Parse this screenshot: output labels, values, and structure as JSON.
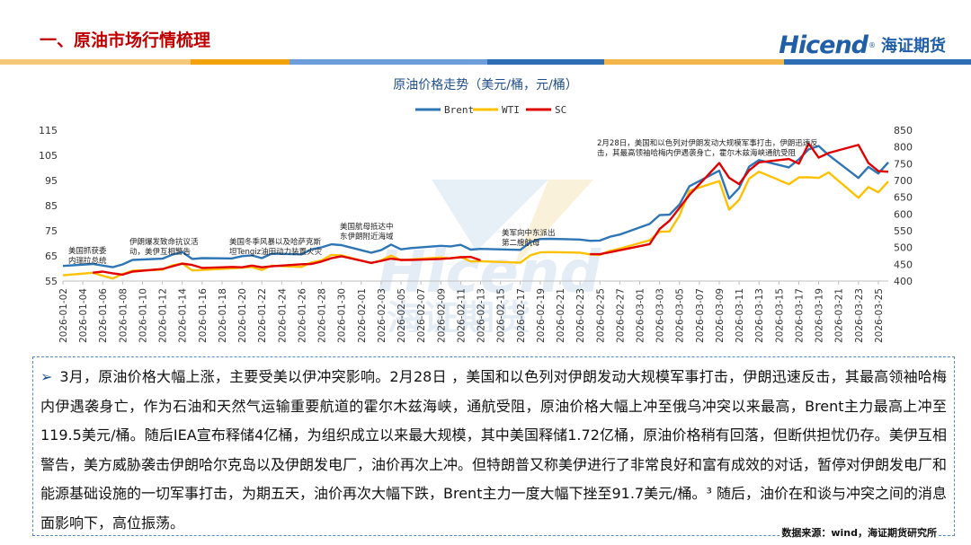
{
  "header": {
    "title": "一、原油市场行情梳理",
    "logo_brand": "Hicend",
    "logo_cn": "海证期货"
  },
  "watermark": {
    "text_en": "Hicend",
    "text_cn": "海证期货"
  },
  "colors": {
    "brent": "#2e75b6",
    "wti": "#ffc000",
    "sc": "#e00000",
    "title_red": "#c00000",
    "accent": "#1f5fa8"
  },
  "chart_data": {
    "type": "line",
    "title": "原油价格走势（美元/桶，元/桶）",
    "legend": [
      "Brent",
      "WTI",
      "SC"
    ],
    "legend_position": "top-center",
    "y_left": {
      "ticks": [
        55,
        65,
        75,
        85,
        95,
        105,
        115
      ],
      "range": [
        55,
        115
      ]
    },
    "y_right": {
      "ticks": [
        400,
        450,
        500,
        550,
        600,
        650,
        700,
        750,
        800,
        850
      ],
      "range": [
        400,
        850
      ]
    },
    "x_tick_labels": [
      "2026-01-02",
      "2026-01-04",
      "2026-01-06",
      "2026-01-08",
      "2026-01-10",
      "2026-01-12",
      "2026-01-14",
      "2026-01-16",
      "2026-01-18",
      "2026-01-20",
      "2026-01-22",
      "2026-01-24",
      "2026-01-26",
      "2026-01-28",
      "2026-01-30",
      "2026-02-01",
      "2026-02-03",
      "2026-02-05",
      "2026-02-07",
      "2026-02-09",
      "2026-02-11",
      "2026-02-13",
      "2026-02-15",
      "2026-02-17",
      "2026-02-19",
      "2026-02-21",
      "2026-02-23",
      "2026-02-25",
      "2026-02-27",
      "2026-03-01",
      "2026-03-03",
      "2026-03-05",
      "2026-03-07",
      "2026-03-09",
      "2026-03-11",
      "2026-03-13",
      "2026-03-15",
      "2026-03-17",
      "2026-03-19",
      "2026-03-21",
      "2026-03-23",
      "2026-03-25"
    ],
    "grid": false,
    "series": [
      {
        "name": "Brent",
        "axis": "left",
        "points": [
          [
            "2026-01-02",
            61.0
          ],
          [
            "2026-01-05",
            61.8
          ],
          [
            "2026-01-07",
            60.5
          ],
          [
            "2026-01-08",
            61.6
          ],
          [
            "2026-01-09",
            63.4
          ],
          [
            "2026-01-12",
            63.9
          ],
          [
            "2026-01-13",
            65.5
          ],
          [
            "2026-01-14",
            66.5
          ],
          [
            "2026-01-15",
            63.8
          ],
          [
            "2026-01-16",
            64.1
          ],
          [
            "2026-01-19",
            64.0
          ],
          [
            "2026-01-20",
            64.9
          ],
          [
            "2026-01-21",
            65.2
          ],
          [
            "2026-01-22",
            64.1
          ],
          [
            "2026-01-23",
            65.9
          ],
          [
            "2026-01-26",
            65.6
          ],
          [
            "2026-01-27",
            67.6
          ],
          [
            "2026-01-28",
            68.4
          ],
          [
            "2026-01-29",
            69.6
          ],
          [
            "2026-01-30",
            69.3
          ],
          [
            "2026-02-02",
            66.3
          ],
          [
            "2026-02-03",
            67.3
          ],
          [
            "2026-02-04",
            69.5
          ],
          [
            "2026-02-05",
            67.6
          ],
          [
            "2026-02-06",
            68.1
          ],
          [
            "2026-02-09",
            69.0
          ],
          [
            "2026-02-10",
            68.8
          ],
          [
            "2026-02-11",
            69.4
          ],
          [
            "2026-02-12",
            67.5
          ],
          [
            "2026-02-13",
            67.8
          ],
          [
            "2026-02-17",
            67.4
          ],
          [
            "2026-02-18",
            70.4
          ],
          [
            "2026-02-19",
            71.7
          ],
          [
            "2026-02-20",
            71.8
          ],
          [
            "2026-02-23",
            71.5
          ],
          [
            "2026-02-24",
            71.0
          ],
          [
            "2026-02-25",
            71.1
          ],
          [
            "2026-02-26",
            72.6
          ],
          [
            "2026-02-27",
            73.5
          ],
          [
            "2026-03-02",
            77.7
          ],
          [
            "2026-03-03",
            81.2
          ],
          [
            "2026-03-04",
            81.4
          ],
          [
            "2026-03-05",
            85.4
          ],
          [
            "2026-03-06",
            92.7
          ],
          [
            "2026-03-09",
            98.9
          ],
          [
            "2026-03-10",
            87.8
          ],
          [
            "2026-03-11",
            92.0
          ],
          [
            "2026-03-12",
            100.5
          ],
          [
            "2026-03-13",
            103.1
          ],
          [
            "2026-03-16",
            100.2
          ],
          [
            "2026-03-17",
            103.4
          ],
          [
            "2026-03-18",
            107.4
          ],
          [
            "2026-03-19",
            108.7
          ],
          [
            "2026-03-20",
            105.1
          ],
          [
            "2026-03-23",
            96.0
          ],
          [
            "2026-03-24",
            100.4
          ],
          [
            "2026-03-25",
            97.8
          ],
          [
            "2026-03-26",
            102.2
          ]
        ]
      },
      {
        "name": "WTI",
        "axis": "left",
        "points": [
          [
            "2026-01-02",
            57.3
          ],
          [
            "2026-01-05",
            58.3
          ],
          [
            "2026-01-06",
            57.1
          ],
          [
            "2026-01-07",
            56.0
          ],
          [
            "2026-01-08",
            57.8
          ],
          [
            "2026-01-09",
            59.1
          ],
          [
            "2026-01-12",
            59.5
          ],
          [
            "2026-01-13",
            61.2
          ],
          [
            "2026-01-14",
            62.0
          ],
          [
            "2026-01-15",
            59.2
          ],
          [
            "2026-01-16",
            59.4
          ],
          [
            "2026-01-20",
            60.3
          ],
          [
            "2026-01-21",
            60.6
          ],
          [
            "2026-01-22",
            59.4
          ],
          [
            "2026-01-23",
            61.1
          ],
          [
            "2026-01-26",
            60.6
          ],
          [
            "2026-01-27",
            62.4
          ],
          [
            "2026-01-28",
            63.2
          ],
          [
            "2026-01-29",
            65.4
          ],
          [
            "2026-01-30",
            65.2
          ],
          [
            "2026-02-02",
            62.1
          ],
          [
            "2026-02-03",
            63.2
          ],
          [
            "2026-02-04",
            65.1
          ],
          [
            "2026-02-05",
            63.3
          ],
          [
            "2026-02-06",
            63.6
          ],
          [
            "2026-02-09",
            64.4
          ],
          [
            "2026-02-10",
            64.0
          ],
          [
            "2026-02-11",
            64.6
          ],
          [
            "2026-02-12",
            62.8
          ],
          [
            "2026-02-13",
            62.9
          ],
          [
            "2026-02-17",
            62.3
          ],
          [
            "2026-02-18",
            65.2
          ],
          [
            "2026-02-19",
            66.4
          ],
          [
            "2026-02-20",
            66.5
          ],
          [
            "2026-02-23",
            66.3
          ],
          [
            "2026-02-24",
            65.6
          ],
          [
            "2026-02-25",
            65.4
          ],
          [
            "2026-02-26",
            67.0
          ],
          [
            "2026-02-27",
            67.9
          ],
          [
            "2026-03-02",
            71.2
          ],
          [
            "2026-03-03",
            74.6
          ],
          [
            "2026-03-04",
            74.7
          ],
          [
            "2026-03-05",
            81.0
          ],
          [
            "2026-03-06",
            90.9
          ],
          [
            "2026-03-09",
            94.8
          ],
          [
            "2026-03-10",
            83.4
          ],
          [
            "2026-03-11",
            87.3
          ],
          [
            "2026-03-12",
            95.7
          ],
          [
            "2026-03-13",
            98.5
          ],
          [
            "2026-03-16",
            93.5
          ],
          [
            "2026-03-17",
            96.2
          ],
          [
            "2026-03-18",
            96.3
          ],
          [
            "2026-03-19",
            96.0
          ],
          [
            "2026-03-20",
            98.2
          ],
          [
            "2026-03-23",
            88.1
          ],
          [
            "2026-03-24",
            92.4
          ],
          [
            "2026-03-25",
            90.3
          ],
          [
            "2026-03-26",
            94.6
          ]
        ]
      },
      {
        "name": "SC",
        "axis": "right",
        "points": [
          [
            "2026-01-05",
            425
          ],
          [
            "2026-01-06",
            428
          ],
          [
            "2026-01-07",
            423
          ],
          [
            "2026-01-08",
            419
          ],
          [
            "2026-01-09",
            428
          ],
          [
            "2026-01-12",
            436
          ],
          [
            "2026-01-13",
            444
          ],
          [
            "2026-01-14",
            452
          ],
          [
            "2026-01-15",
            448
          ],
          [
            "2026-01-16",
            439
          ],
          [
            "2026-01-19",
            442
          ],
          [
            "2026-01-20",
            441
          ],
          [
            "2026-01-21",
            446
          ],
          [
            "2026-01-22",
            441
          ],
          [
            "2026-01-23",
            444
          ],
          [
            "2026-01-26",
            450
          ],
          [
            "2026-01-27",
            451
          ],
          [
            "2026-01-28",
            458
          ],
          [
            "2026-01-29",
            468
          ],
          [
            "2026-01-30",
            474
          ],
          [
            "2026-02-02",
            454
          ],
          [
            "2026-02-03",
            460
          ],
          [
            "2026-02-04",
            467
          ],
          [
            "2026-02-05",
            463
          ],
          [
            "2026-02-06",
            463
          ],
          [
            "2026-02-09",
            466
          ],
          [
            "2026-02-10",
            468
          ],
          [
            "2026-02-11",
            471
          ],
          [
            "2026-02-12",
            472
          ],
          [
            "2026-02-13",
            462
          ],
          [
            "2026-02-24",
            480
          ],
          [
            "2026-02-25",
            480
          ],
          [
            "2026-02-26",
            486
          ],
          [
            "2026-02-27",
            492
          ],
          [
            "2026-03-02",
            510
          ],
          [
            "2026-03-03",
            555
          ],
          [
            "2026-03-04",
            580
          ],
          [
            "2026-03-05",
            618
          ],
          [
            "2026-03-06",
            657
          ],
          [
            "2026-03-09",
            752
          ],
          [
            "2026-03-10",
            708
          ],
          [
            "2026-03-11",
            689
          ],
          [
            "2026-03-12",
            730
          ],
          [
            "2026-03-13",
            754
          ],
          [
            "2026-03-16",
            764
          ],
          [
            "2026-03-17",
            750
          ],
          [
            "2026-03-18",
            810
          ],
          [
            "2026-03-19",
            768
          ],
          [
            "2026-03-20",
            782
          ],
          [
            "2026-03-23",
            806
          ],
          [
            "2026-03-24",
            752
          ],
          [
            "2026-03-25",
            728
          ],
          [
            "2026-03-26",
            726
          ]
        ]
      }
    ],
    "annotations": [
      {
        "lines": [
          "美国抓获委",
          "内瑞拉总统"
        ],
        "at_date": "2026-01-03"
      },
      {
        "lines": [
          "伊朗爆发致命抗议活",
          "动，美伊互相警告"
        ],
        "at_date": "2026-01-11"
      },
      {
        "lines": [
          "美国冬季风暴以及哈萨克斯",
          "坦Tengiz油田动力装置火灾"
        ],
        "at_date": "2026-01-25"
      },
      {
        "lines": [
          "美国航母抵达中",
          "东伊朗附近海域"
        ],
        "at_date": "2026-02-01"
      },
      {
        "lines": [
          "美军向中东派出",
          "第二艘航母"
        ],
        "at_date": "2026-02-13"
      },
      {
        "lines": [
          "2月28日，美国和以色列对伊朗发动大规模军事打击，伊朗迅速反",
          "击，其最高领袖哈梅内伊遇袭身亡，霍尔木兹海峡通航受阻"
        ],
        "at_date": "2026-03-01"
      }
    ]
  },
  "commentary": {
    "text": "3月，原油价格大幅上涨，主要受美以伊冲突影响。2月28日 ，美国和以色列对伊朗发动大规模军事打击，伊朗迅速反击，其最高领袖哈梅内伊遇袭身亡，作为石油和天然气运输重要航道的霍尔木兹海峡，通航受阻，原油价格大幅上冲至俄乌冲突以来最高，Brent主力最高上冲至119.5美元/桶。随后IEA宣布释储4亿桶，为组织成立以来最大规模，其中美国释储1.72亿桶，原油价格稍有回落，但断供担忧仍存。美伊互相警告，美方威胁袭击伊朗哈尔克岛以及伊朗发电厂，油价再次上冲。但特朗普又称美伊进行了非常良好和富有成效的对话，暂停对伊朗发电厂和能源基础设施的一切军事打击，为期五天，油价再次大幅下跌，Brent主力一度大幅下挫至91.7美元/桶。³ 随后，油价在和谈与冲突之间的消息面影响下，高位振荡。",
    "footnote": "3"
  },
  "source": "数据来源：wind，海证期货研究所"
}
